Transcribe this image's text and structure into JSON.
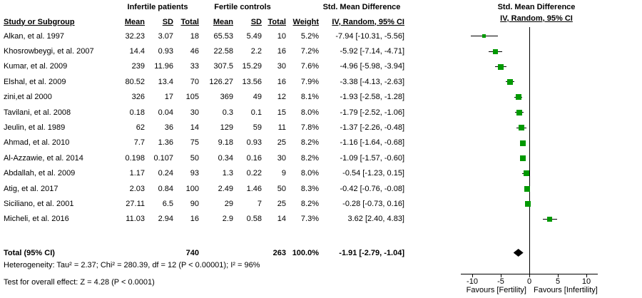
{
  "title_groups": {
    "group1": "Infertile patients",
    "group2": "Fertile controls",
    "smd_left": "Std. Mean Difference",
    "smd_right": "Std. Mean Difference"
  },
  "columns": {
    "study": "Study or Subgroup",
    "mean": "Mean",
    "sd": "SD",
    "total": "Total",
    "weight": "Weight",
    "ci": "IV, Random, 95% CI"
  },
  "footnotes": {
    "heterogeneity": "Heterogeneity: Tau² = 2.37; Chi² = 280.39, df = 12 (P < 0.00001); I² = 96%",
    "overall": "Test for overall effect: Z = 4.28 (P < 0.0001)"
  },
  "chart_data": {
    "type": "forest",
    "effect_measure": "Std. Mean Difference (IV, Random, 95% CI)",
    "marker_color": "#009900",
    "xticks": [
      -10,
      -5,
      0,
      5,
      10
    ],
    "xlim": [
      -12,
      12
    ],
    "favours_left": "Favours [Fertility]",
    "favours_right": "Favours [Infertility]",
    "studies": [
      {
        "name": "Alkan, et al. 1997",
        "mean1": "32.23",
        "sd1": "3.07",
        "n1": "18",
        "mean2": "65.53",
        "sd2": "5.49",
        "n2": "10",
        "weight": "5.2%",
        "ci_text": "-7.94 [-10.31, -5.56]",
        "est": -7.94,
        "lo": -10.31,
        "hi": -5.56,
        "w": 5.2
      },
      {
        "name": "Khosrowbeygi, et al. 2007",
        "mean1": "14.4",
        "sd1": "0.93",
        "n1": "46",
        "mean2": "22.58",
        "sd2": "2.2",
        "n2": "16",
        "weight": "7.2%",
        "ci_text": "-5.92 [-7.14, -4.71]",
        "est": -5.92,
        "lo": -7.14,
        "hi": -4.71,
        "w": 7.2
      },
      {
        "name": "Kumar, et al. 2009",
        "mean1": "239",
        "sd1": "11.96",
        "n1": "33",
        "mean2": "307.5",
        "sd2": "15.29",
        "n2": "30",
        "weight": "7.6%",
        "ci_text": "-4.96 [-5.98, -3.94]",
        "est": -4.96,
        "lo": -5.98,
        "hi": -3.94,
        "w": 7.6
      },
      {
        "name": "Elshal, et al. 2009",
        "mean1": "80.52",
        "sd1": "13.4",
        "n1": "70",
        "mean2": "126.27",
        "sd2": "13.56",
        "n2": "16",
        "weight": "7.9%",
        "ci_text": "-3.38 [-4.13, -2.63]",
        "est": -3.38,
        "lo": -4.13,
        "hi": -2.63,
        "w": 7.9
      },
      {
        "name": "zini,et al 2000",
        "mean1": "326",
        "sd1": "17",
        "n1": "105",
        "mean2": "369",
        "sd2": "49",
        "n2": "12",
        "weight": "8.1%",
        "ci_text": "-1.93 [-2.58, -1.28]",
        "est": -1.93,
        "lo": -2.58,
        "hi": -1.28,
        "w": 8.1
      },
      {
        "name": "Tavilani, et al. 2008",
        "mean1": "0.18",
        "sd1": "0.04",
        "n1": "30",
        "mean2": "0.3",
        "sd2": "0.1",
        "n2": "15",
        "weight": "8.0%",
        "ci_text": "-1.79 [-2.52, -1.06]",
        "est": -1.79,
        "lo": -2.52,
        "hi": -1.06,
        "w": 8.0
      },
      {
        "name": "Jeulin, et al. 1989",
        "mean1": "62",
        "sd1": "36",
        "n1": "14",
        "mean2": "129",
        "sd2": "59",
        "n2": "11",
        "weight": "7.8%",
        "ci_text": "-1.37 [-2.26, -0.48]",
        "est": -1.37,
        "lo": -2.26,
        "hi": -0.48,
        "w": 7.8
      },
      {
        "name": "Ahmad, et al. 2010",
        "mean1": "7.7",
        "sd1": "1.36",
        "n1": "75",
        "mean2": "9.18",
        "sd2": "0.93",
        "n2": "25",
        "weight": "8.2%",
        "ci_text": "-1.16 [-1.64, -0.68]",
        "est": -1.16,
        "lo": -1.64,
        "hi": -0.68,
        "w": 8.2
      },
      {
        "name": "Al-Azzawie, et al. 2014",
        "mean1": "0.198",
        "sd1": "0.107",
        "n1": "50",
        "mean2": "0.34",
        "sd2": "0.16",
        "n2": "30",
        "weight": "8.2%",
        "ci_text": "-1.09 [-1.57, -0.60]",
        "est": -1.09,
        "lo": -1.57,
        "hi": -0.6,
        "w": 8.2
      },
      {
        "name": "Abdallah, et al. 2009",
        "mean1": "1.17",
        "sd1": "0.24",
        "n1": "93",
        "mean2": "1.3",
        "sd2": "0.22",
        "n2": "9",
        "weight": "8.0%",
        "ci_text": "-0.54 [-1.23, 0.15]",
        "est": -0.54,
        "lo": -1.23,
        "hi": 0.15,
        "w": 8.0
      },
      {
        "name": "Atig, et al. 2017",
        "mean1": "2.03",
        "sd1": "0.84",
        "n1": "100",
        "mean2": "2.49",
        "sd2": "1.46",
        "n2": "50",
        "weight": "8.3%",
        "ci_text": "-0.42 [-0.76, -0.08]",
        "est": -0.42,
        "lo": -0.76,
        "hi": -0.08,
        "w": 8.3
      },
      {
        "name": "Siciliano, et al. 2001",
        "mean1": "27.11",
        "sd1": "6.5",
        "n1": "90",
        "mean2": "29",
        "sd2": "7",
        "n2": "25",
        "weight": "8.2%",
        "ci_text": "-0.28 [-0.73, 0.16]",
        "est": -0.28,
        "lo": -0.73,
        "hi": 0.16,
        "w": 8.2
      },
      {
        "name": "Micheli, et al. 2016",
        "mean1": "11.03",
        "sd1": "2.94",
        "n1": "16",
        "mean2": "2.9",
        "sd2": "0.58",
        "n2": "14",
        "weight": "7.3%",
        "ci_text": "3.62 [2.40, 4.83]",
        "est": 3.62,
        "lo": 2.4,
        "hi": 4.83,
        "w": 7.3
      }
    ],
    "total": {
      "label": "Total (95% CI)",
      "n1": "740",
      "n2": "263",
      "weight": "100.0%",
      "ci_text": "-1.91 [-2.79, -1.04]",
      "est": -1.91,
      "lo": -2.79,
      "hi": -1.04
    }
  }
}
